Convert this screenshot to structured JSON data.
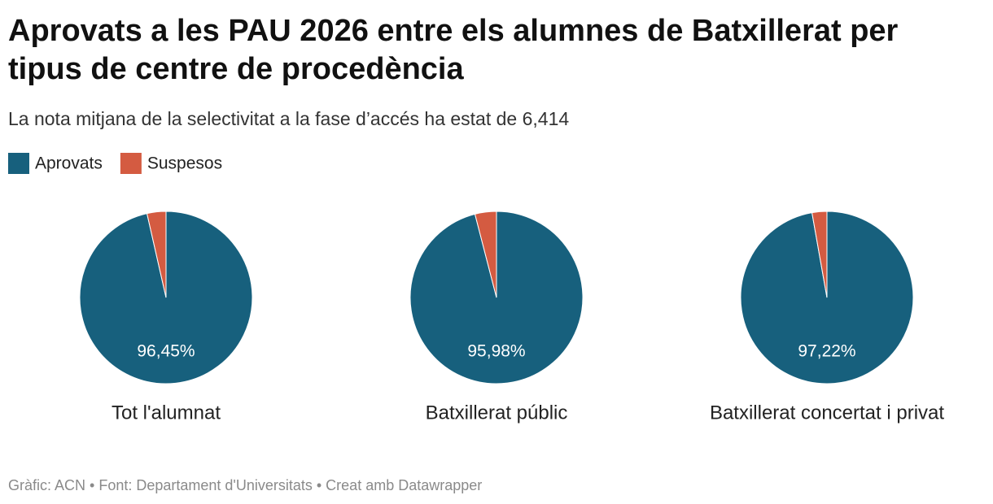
{
  "title": "Aprovats a les PAU 2026 entre els alumnes de Batxillerat per",
  "title_line2": "tipus de centre de procedència",
  "subtitle": "La nota mitjana de la selectivitat a la fase d’accés ha estat de 6,414",
  "footer": "Gràfic: ACN • Font: Departament d'Universitats • Creat amb Datawrapper",
  "chart_data": [
    {
      "type": "pie",
      "title": "Tot l'alumnat",
      "categories": [
        "Aprovats",
        "Suspesos"
      ],
      "values": [
        96.45,
        3.55
      ],
      "value_labels": [
        "96,45%",
        null
      ],
      "colors": [
        "#17607d",
        "#d45b41"
      ]
    },
    {
      "type": "pie",
      "title": "Batxillerat públic",
      "categories": [
        "Aprovats",
        "Suspesos"
      ],
      "values": [
        95.98,
        4.02
      ],
      "value_labels": [
        "95,98%",
        null
      ],
      "colors": [
        "#17607d",
        "#d45b41"
      ]
    },
    {
      "type": "pie",
      "title": "Batxillerat concertat i privat",
      "categories": [
        "Aprovats",
        "Suspesos"
      ],
      "values": [
        97.22,
        2.78
      ],
      "value_labels": [
        "97,22%",
        null
      ],
      "colors": [
        "#17607d",
        "#d45b41"
      ]
    }
  ]
}
